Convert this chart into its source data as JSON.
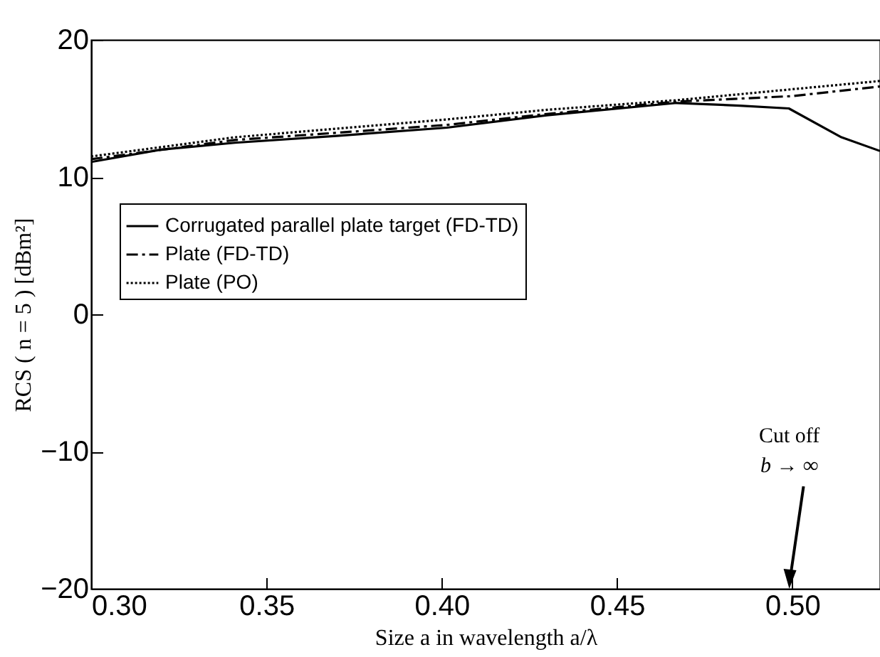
{
  "chart_data": {
    "type": "line",
    "xlabel": "Size a in wavelength a/λ",
    "ylabel": "RCS ( n = 5 ) [dBm²]",
    "xlim": [
      0.3,
      0.525
    ],
    "xticks": [
      {
        "value": 0.3,
        "label": "0.30"
      },
      0.35,
      {
        "value": 0.4,
        "label": "0.40"
      },
      0.45,
      {
        "value": 0.5,
        "label": "0.50"
      }
    ],
    "ylim": [
      -20,
      20
    ],
    "yticks": [
      -20,
      -10,
      0,
      10,
      20
    ],
    "legend": "left",
    "grid": false,
    "series": [
      {
        "name": "Corrugated parallel plate target (FD-TD)",
        "color": "#000000",
        "line_style": "solid",
        "x": [
          0.3,
          0.32,
          0.341,
          0.37,
          0.4015,
          0.43,
          0.467,
          0.485,
          0.499,
          0.514,
          0.525
        ],
        "values": [
          11.1,
          12.0,
          12.5,
          13.0,
          13.6,
          14.5,
          15.4,
          15.2,
          15.0,
          12.9,
          11.9
        ]
      },
      {
        "name": "Plate (FD-TD)",
        "color": "#000000",
        "line_style": "dashed",
        "x": [
          0.3,
          0.341,
          0.4015,
          0.43,
          0.467,
          0.5,
          0.525
        ],
        "values": [
          11.3,
          12.7,
          13.8,
          14.6,
          15.5,
          15.9,
          16.6
        ]
      },
      {
        "name": "Plate (PO)",
        "color": "#000000",
        "line_style": "dotted",
        "x": [
          0.3,
          0.341,
          0.4015,
          0.43,
          0.467,
          0.5,
          0.525
        ],
        "values": [
          11.5,
          12.9,
          14.2,
          14.9,
          15.6,
          16.4,
          17.0
        ]
      }
    ],
    "annotations": [
      "Cut off",
      "b → ∞"
    ]
  }
}
